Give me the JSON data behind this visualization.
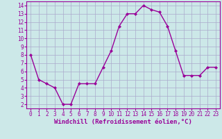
{
  "x": [
    0,
    1,
    2,
    3,
    4,
    5,
    6,
    7,
    8,
    9,
    10,
    11,
    12,
    13,
    14,
    15,
    16,
    17,
    18,
    19,
    20,
    21,
    22,
    23
  ],
  "y": [
    8,
    5,
    4.5,
    4,
    2,
    2,
    4.5,
    4.5,
    4.5,
    6.5,
    8.5,
    11.5,
    13,
    13,
    14,
    13.5,
    13.2,
    11.5,
    8.5,
    5.5,
    5.5,
    5.5,
    6.5,
    6.5
  ],
  "line_color": "#990099",
  "marker": "D",
  "markersize": 2,
  "linewidth": 1.0,
  "bg_color": "#cce8e8",
  "grid_color": "#aaaacc",
  "xlabel": "Windchill (Refroidissement éolien,°C)",
  "xlabel_fontsize": 6.5,
  "xlim": [
    -0.5,
    23.5
  ],
  "ylim": [
    1.5,
    14.5
  ],
  "yticks": [
    2,
    3,
    4,
    5,
    6,
    7,
    8,
    9,
    10,
    11,
    12,
    13,
    14
  ],
  "xticks": [
    0,
    1,
    2,
    3,
    4,
    5,
    6,
    7,
    8,
    9,
    10,
    11,
    12,
    13,
    14,
    15,
    16,
    17,
    18,
    19,
    20,
    21,
    22,
    23
  ],
  "tick_fontsize": 5.5,
  "tick_color": "#990099",
  "label_color": "#990099",
  "spine_color": "#990099"
}
